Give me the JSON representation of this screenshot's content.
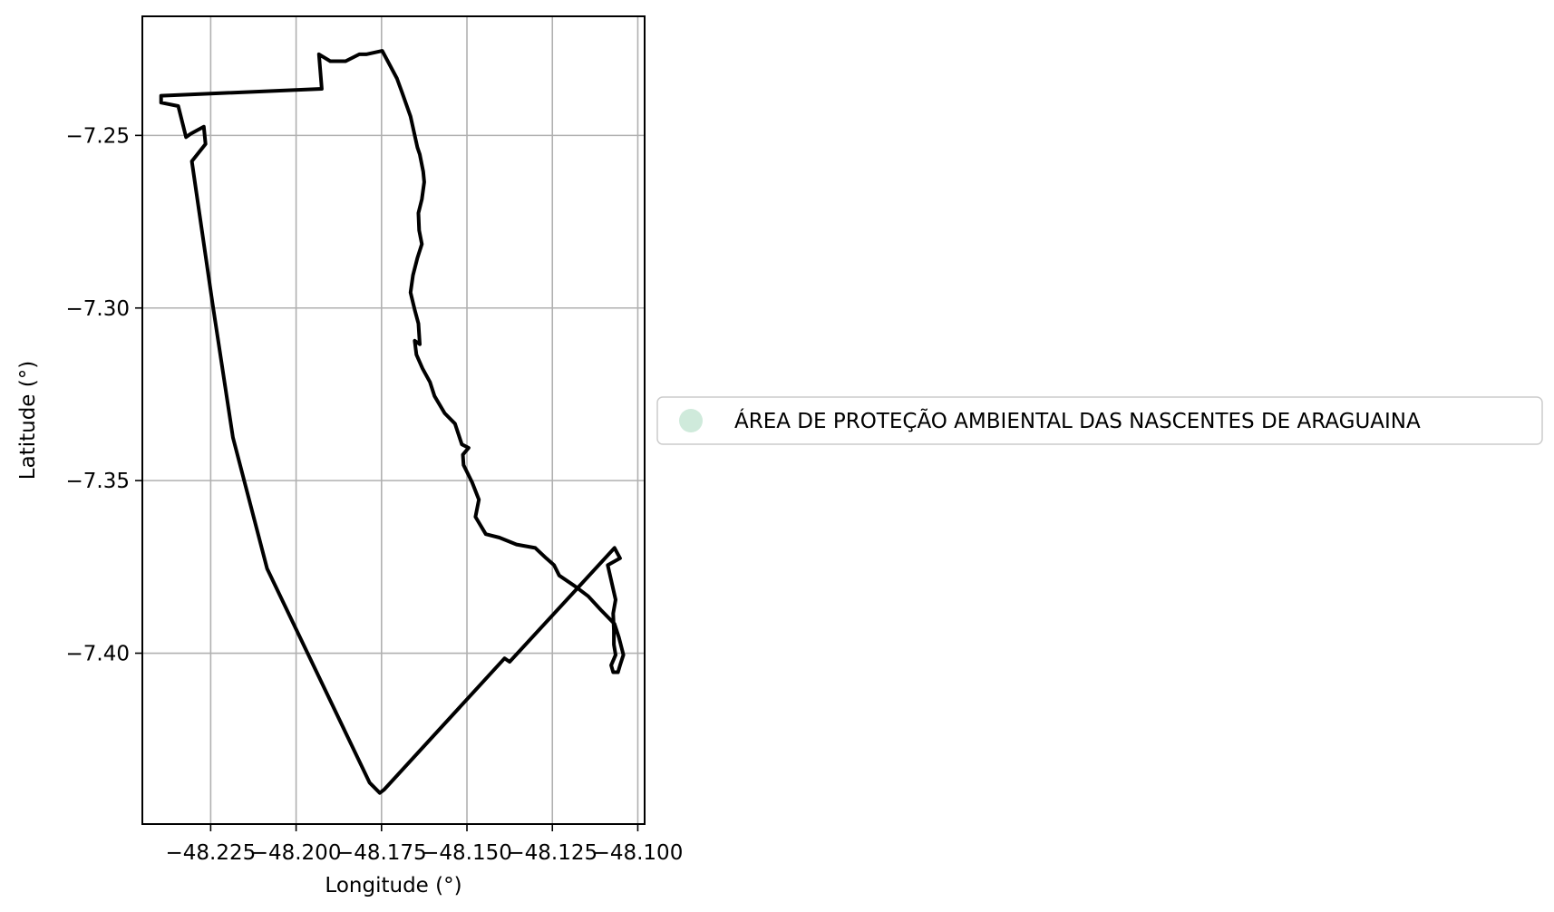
{
  "chart_data": {
    "type": "map",
    "xlabel": "Longitude (°)",
    "ylabel": "Latitude (°)",
    "xlim": [
      -48.245,
      -48.098
    ],
    "ylim": [
      -7.4495,
      -7.2155
    ],
    "x_ticks": [
      -48.225,
      -48.2,
      -48.175,
      -48.15,
      -48.125,
      -48.1
    ],
    "x_tick_labels": [
      "−48.225",
      "−48.200",
      "−48.175",
      "−48.150",
      "−48.125",
      "−48.100"
    ],
    "y_ticks": [
      -7.25,
      -7.3,
      -7.35,
      -7.4
    ],
    "y_tick_labels": [
      "−7.25",
      "−7.30",
      "−7.35",
      "−7.40"
    ],
    "grid": true,
    "legend": {
      "placement": "right-center",
      "entries": [
        {
          "label": "ÁREA DE PROTEÇÃO AMBIENTAL DAS NASCENTES DE ARAGUAINA",
          "color": "#cfeadb"
        }
      ]
    },
    "series": [
      {
        "type": "polygon-outline",
        "color": "#000000",
        "lon": [
          -48.2395,
          -48.1925,
          -48.1933,
          -48.19,
          -48.1855,
          -48.1815,
          -48.1795,
          -48.1748,
          -48.1705,
          -48.169,
          -48.1665,
          -48.1645,
          -48.1638,
          -48.1628,
          -48.1625,
          -48.1632,
          -48.1642,
          -48.164,
          -48.1632,
          -48.1645,
          -48.1658,
          -48.1665,
          -48.1653,
          -48.1642,
          -48.1638,
          -48.1653,
          -48.1648,
          -48.163,
          -48.1608,
          -48.1595,
          -48.1565,
          -48.1535,
          -48.1515,
          -48.1495,
          -48.1512,
          -48.151,
          -48.1485,
          -48.1465,
          -48.1475,
          -48.1445,
          -48.1405,
          -48.1355,
          -48.13,
          -48.1268,
          -48.1245,
          -48.123,
          -48.1185,
          -48.1145,
          -48.1108,
          -48.1068,
          -48.1055,
          -48.1042,
          -48.1052,
          -48.1058,
          -48.1072,
          -48.1078,
          -48.1065,
          -48.107,
          -48.107,
          -48.1072,
          -48.1065,
          -48.1088,
          -48.1052,
          -48.1068,
          -48.1375,
          -48.139,
          -48.1742,
          -48.1755,
          -48.1785,
          -48.2085,
          -48.2185,
          -48.2245,
          -48.2305,
          -48.2265,
          -48.227,
          -48.2308,
          -48.2322,
          -48.2345,
          -48.2395,
          -48.2395
        ],
        "lat": [
          -7.2385,
          -7.2365,
          -7.2265,
          -7.2285,
          -7.2285,
          -7.2265,
          -7.2265,
          -7.2255,
          -7.2335,
          -7.2375,
          -7.2445,
          -7.2535,
          -7.2555,
          -7.2605,
          -7.2635,
          -7.2685,
          -7.2725,
          -7.2775,
          -7.2815,
          -7.2855,
          -7.2905,
          -7.2955,
          -7.3005,
          -7.3045,
          -7.3105,
          -7.3095,
          -7.3135,
          -7.3175,
          -7.3215,
          -7.3255,
          -7.3305,
          -7.3335,
          -7.3395,
          -7.3405,
          -7.3425,
          -7.3455,
          -7.3505,
          -7.3555,
          -7.3605,
          -7.3655,
          -7.3665,
          -7.3685,
          -7.3695,
          -7.3725,
          -7.3745,
          -7.3775,
          -7.3805,
          -7.3835,
          -7.3875,
          -7.3915,
          -7.3955,
          -7.4005,
          -7.4035,
          -7.4055,
          -7.4055,
          -7.4035,
          -7.4005,
          -7.3975,
          -7.3935,
          -7.3885,
          -7.3845,
          -7.3745,
          -7.3725,
          -7.3695,
          -7.4025,
          -7.4015,
          -7.4395,
          -7.4405,
          -7.4375,
          -7.3755,
          -7.3375,
          -7.2985,
          -7.2575,
          -7.2525,
          -7.2475,
          -7.2495,
          -7.2505,
          -7.2415,
          -7.2405,
          -7.2385
        ]
      }
    ]
  }
}
